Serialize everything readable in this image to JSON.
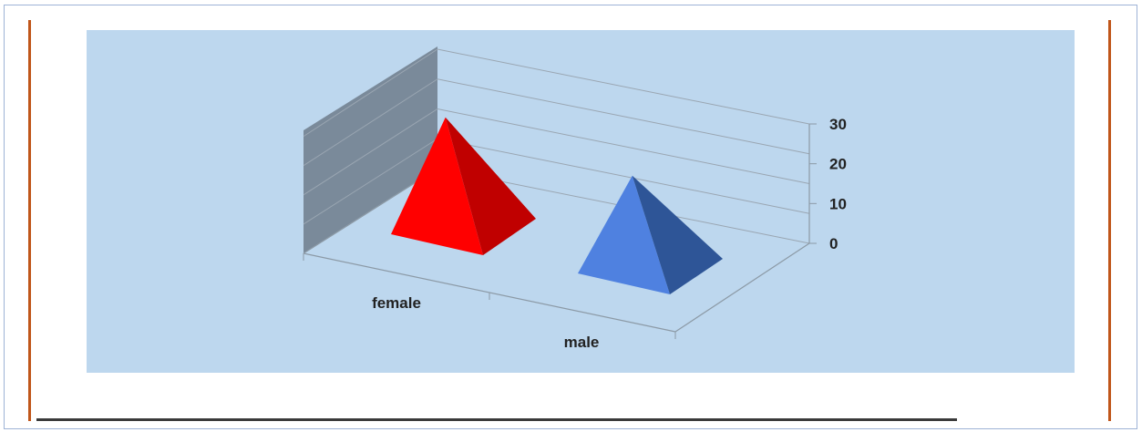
{
  "chart_data": {
    "type": "bar",
    "style": "3d-pyramid",
    "categories": [
      "female",
      "male"
    ],
    "series": [
      {
        "values": [
          29,
          24
        ]
      }
    ],
    "colors": [
      "#ff0000",
      "#4f81e0"
    ],
    "side_colors": [
      "#c00000",
      "#2e5597"
    ],
    "yticks": [
      "0",
      "10",
      "20",
      "30"
    ],
    "ylim": [
      0,
      30
    ],
    "plot_background": "#bdd7ee",
    "wall_color": "#7a8a9a",
    "title": "",
    "xlabel": "",
    "ylabel": "",
    "grid": true
  }
}
